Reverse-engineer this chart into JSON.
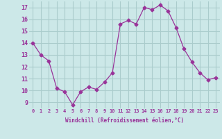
{
  "x": [
    0,
    1,
    2,
    3,
    4,
    5,
    6,
    7,
    8,
    9,
    10,
    11,
    12,
    13,
    14,
    15,
    16,
    17,
    18,
    19,
    20,
    21,
    22,
    23
  ],
  "y": [
    14.0,
    13.0,
    12.5,
    10.2,
    9.9,
    8.8,
    9.9,
    10.3,
    10.1,
    10.7,
    11.5,
    15.6,
    15.9,
    15.6,
    17.0,
    16.8,
    17.2,
    16.7,
    15.3,
    13.5,
    12.4,
    11.5,
    10.9,
    11.1
  ],
  "line_color": "#993399",
  "marker": "D",
  "marker_size": 2.5,
  "bg_color": "#cce8e8",
  "grid_color": "#aacccc",
  "xlabel": "Windchill (Refroidissement éolien,°C)",
  "xlabel_color": "#993399",
  "tick_color": "#993399",
  "label_color": "#993399",
  "ylim": [
    8.5,
    17.5
  ],
  "xlim": [
    -0.5,
    23.5
  ],
  "yticks": [
    9,
    10,
    11,
    12,
    13,
    14,
    15,
    16,
    17
  ],
  "xtick_labels": [
    "0",
    "1",
    "2",
    "3",
    "4",
    "5",
    "6",
    "7",
    "8",
    "9",
    "10",
    "11",
    "12",
    "13",
    "14",
    "15",
    "16",
    "17",
    "18",
    "19",
    "20",
    "21",
    "22",
    "23"
  ]
}
